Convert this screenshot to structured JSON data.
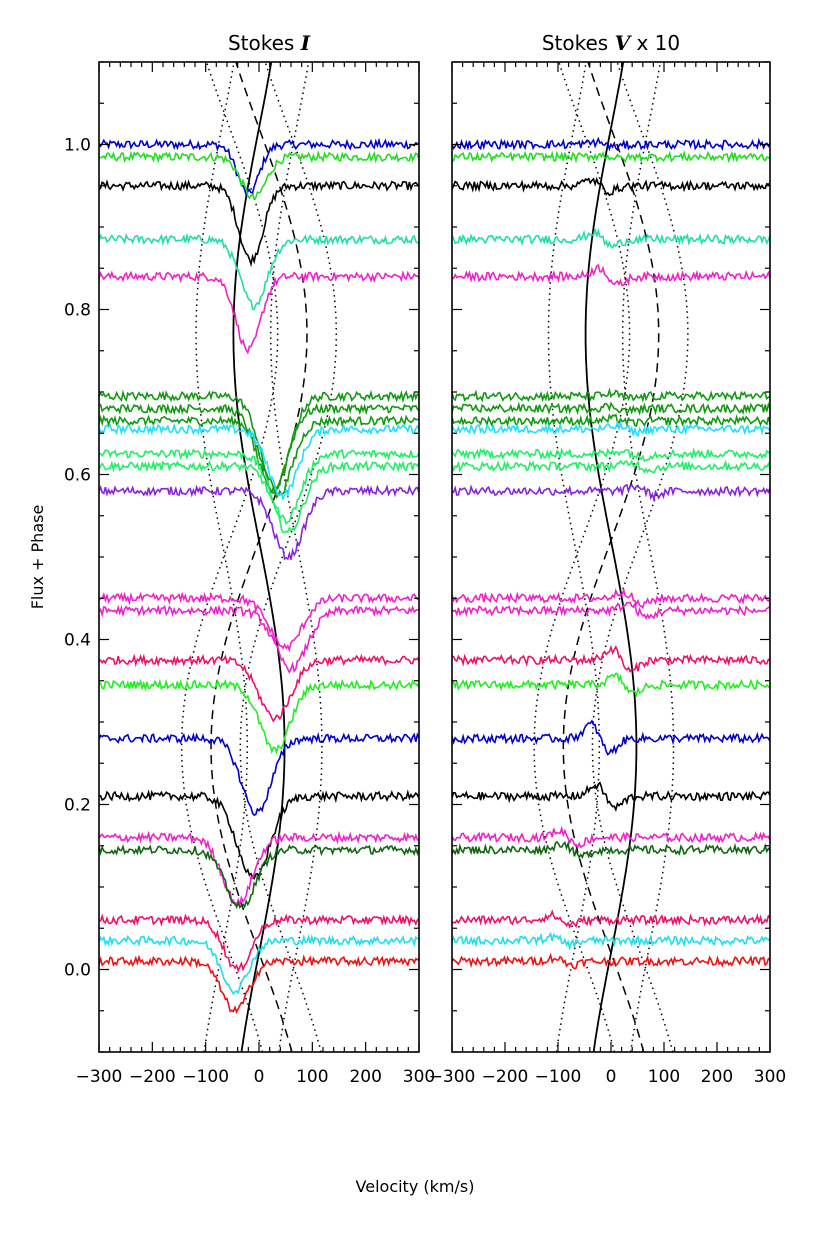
{
  "chart_data": {
    "type": "line",
    "ylabel": "Flux + Phase",
    "xlabel": "Velocity (km/s)",
    "xlim": [
      -300,
      300
    ],
    "ylim": [
      -0.1,
      1.1
    ],
    "xticks": [
      -300,
      -200,
      -100,
      0,
      100,
      200,
      300
    ],
    "yticks": [
      0.0,
      0.2,
      0.4,
      0.6,
      0.8,
      1.0
    ],
    "ytick_labels": [
      "0.0",
      "0.2",
      "0.4",
      "0.6",
      "0.8",
      "1.0"
    ],
    "panels": [
      {
        "title_prefix": "Stokes ",
        "title_symbol": "I",
        "title_suffix": "",
        "kind": "I"
      },
      {
        "title_prefix": "Stokes ",
        "title_symbol": "V",
        "title_suffix": " x 10",
        "kind": "V"
      }
    ],
    "spectra": [
      {
        "base": 1.0,
        "color": "#0000cc",
        "center": -20,
        "depth": 0.06,
        "width": 40,
        "v_amp": 0.004,
        "v_center": -10
      },
      {
        "base": 0.985,
        "color": "#22dd22",
        "center": -10,
        "depth": 0.05,
        "width": 45,
        "v_amp": 0.003,
        "v_center": 0
      },
      {
        "base": 0.95,
        "color": "#000000",
        "center": -15,
        "depth": 0.09,
        "width": 45,
        "v_amp": 0.01,
        "v_center": -20
      },
      {
        "base": 0.885,
        "color": "#22ddaa",
        "center": -10,
        "depth": 0.08,
        "width": 50,
        "v_amp": 0.012,
        "v_center": -15
      },
      {
        "base": 0.84,
        "color": "#ee22cc",
        "center": -20,
        "depth": 0.09,
        "width": 45,
        "v_amp": 0.015,
        "v_center": -5
      },
      {
        "base": 0.695,
        "color": "#119911",
        "center": 30,
        "depth": 0.11,
        "width": 55,
        "v_amp": 0.004,
        "v_center": 20
      },
      {
        "base": 0.68,
        "color": "#119911",
        "center": 25,
        "depth": 0.1,
        "width": 55,
        "v_amp": 0.004,
        "v_center": 15
      },
      {
        "base": 0.665,
        "color": "#119911",
        "center": 35,
        "depth": 0.09,
        "width": 55,
        "v_amp": 0.004,
        "v_center": 25
      },
      {
        "base": 0.655,
        "color": "#22ddff",
        "center": 45,
        "depth": 0.08,
        "width": 55,
        "v_amp": 0.005,
        "v_center": 30
      },
      {
        "base": 0.625,
        "color": "#22ee66",
        "center": 50,
        "depth": 0.08,
        "width": 55,
        "v_amp": 0.006,
        "v_center": 40
      },
      {
        "base": 0.61,
        "color": "#22ee66",
        "center": 55,
        "depth": 0.08,
        "width": 55,
        "v_amp": 0.006,
        "v_center": 55
      },
      {
        "base": 0.58,
        "color": "#8822dd",
        "center": 55,
        "depth": 0.08,
        "width": 55,
        "v_amp": 0.008,
        "v_center": 65
      },
      {
        "base": 0.45,
        "color": "#ee22cc",
        "center": 50,
        "depth": 0.06,
        "width": 60,
        "v_amp": 0.012,
        "v_center": 40
      },
      {
        "base": 0.435,
        "color": "#ee22cc",
        "center": 60,
        "depth": 0.07,
        "width": 60,
        "v_amp": 0.012,
        "v_center": 50
      },
      {
        "base": 0.375,
        "color": "#ee1166",
        "center": 30,
        "depth": 0.07,
        "width": 60,
        "v_amp": 0.02,
        "v_center": 20
      },
      {
        "base": 0.345,
        "color": "#22ee22",
        "center": 30,
        "depth": 0.08,
        "width": 55,
        "v_amp": 0.015,
        "v_center": 25
      },
      {
        "base": 0.28,
        "color": "#0000cc",
        "center": -5,
        "depth": 0.09,
        "width": 55,
        "v_amp": 0.025,
        "v_center": -20
      },
      {
        "base": 0.21,
        "color": "#000000",
        "center": -10,
        "depth": 0.1,
        "width": 60,
        "v_amp": 0.02,
        "v_center": -10
      },
      {
        "base": 0.16,
        "color": "#ee22cc",
        "center": -40,
        "depth": 0.08,
        "width": 55,
        "v_amp": 0.012,
        "v_center": -80
      },
      {
        "base": 0.145,
        "color": "#116611",
        "center": -35,
        "depth": 0.07,
        "width": 55,
        "v_amp": 0.012,
        "v_center": -75
      },
      {
        "base": 0.06,
        "color": "#ee1166",
        "center": -40,
        "depth": 0.06,
        "width": 50,
        "v_amp": 0.008,
        "v_center": -95
      },
      {
        "base": 0.035,
        "color": "#22ddee",
        "center": -45,
        "depth": 0.06,
        "width": 50,
        "v_amp": 0.006,
        "v_center": -95
      },
      {
        "base": 0.01,
        "color": "#ee1111",
        "center": -45,
        "depth": 0.06,
        "width": 50,
        "v_amp": 0.006,
        "v_center": -90
      }
    ],
    "guide_curves": [
      {
        "style": "solid",
        "amplitude": 48,
        "offset": 0,
        "phase_zero": 0.02
      },
      {
        "style": "dashed",
        "amplitude": 90,
        "offset": 0,
        "phase_zero": 0.52
      },
      {
        "style": "dotted",
        "amplitude": 48,
        "offset": -70,
        "phase_zero": 0.02
      },
      {
        "style": "dotted",
        "amplitude": 48,
        "offset": 70,
        "phase_zero": 0.02
      },
      {
        "style": "dotted",
        "amplitude": 90,
        "offset": -55,
        "phase_zero": 0.52
      },
      {
        "style": "dotted",
        "amplitude": 90,
        "offset": 55,
        "phase_zero": 0.52
      }
    ]
  }
}
